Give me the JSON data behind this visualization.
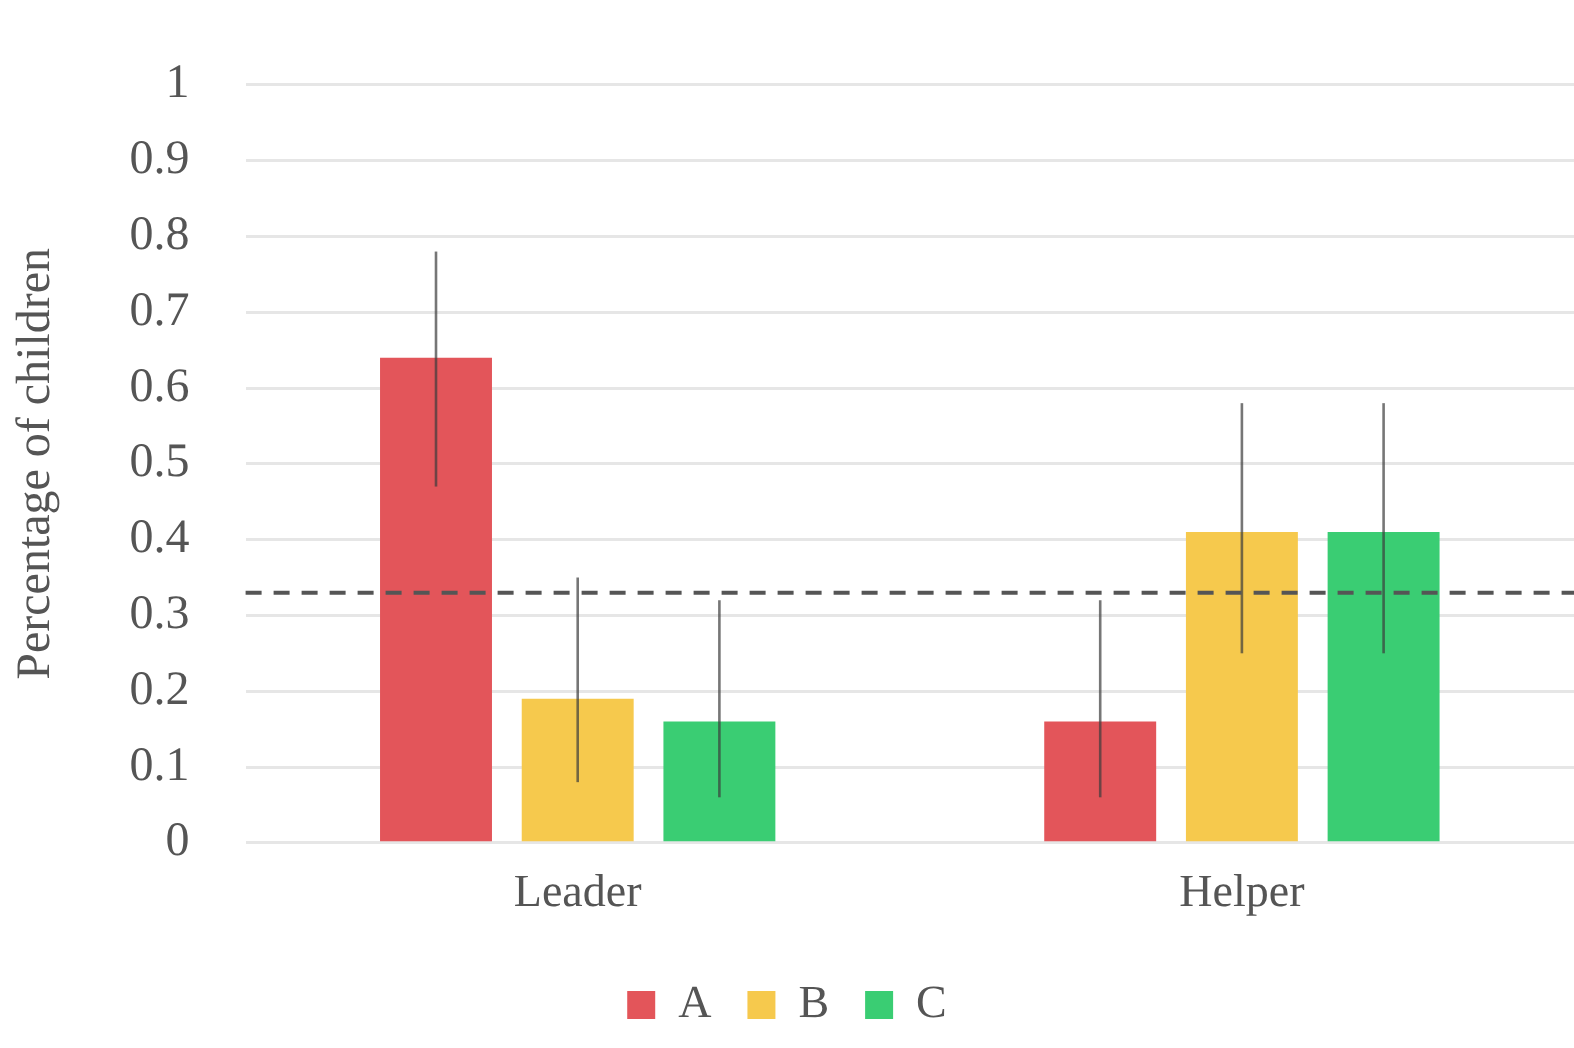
{
  "chart_data": {
    "type": "bar",
    "ylabel": "Percentage of children",
    "categories": [
      "Leader",
      "Helper"
    ],
    "series": [
      {
        "name": "A",
        "color": "#e3555a",
        "values": [
          0.64,
          0.16
        ],
        "errors": [
          [
            0.47,
            0.78
          ],
          [
            0.06,
            0.32
          ]
        ]
      },
      {
        "name": "B",
        "color": "#f6c94d",
        "values": [
          0.19,
          0.41
        ],
        "errors": [
          [
            0.08,
            0.35
          ],
          [
            0.25,
            0.58
          ]
        ]
      },
      {
        "name": "C",
        "color": "#3acd73",
        "values": [
          0.16,
          0.41
        ],
        "errors": [
          [
            0.06,
            0.32
          ],
          [
            0.25,
            0.58
          ]
        ]
      }
    ],
    "ylim": [
      0,
      1
    ],
    "yticks": [
      0,
      0.1,
      0.2,
      0.3,
      0.4,
      0.5,
      0.6,
      0.7,
      0.8,
      0.9,
      1
    ],
    "ref_lines": [
      {
        "axis": "y",
        "value": 0.33,
        "color": "#555555",
        "line_style": "dashed"
      }
    ],
    "grid": "y",
    "legend": "bottom"
  }
}
